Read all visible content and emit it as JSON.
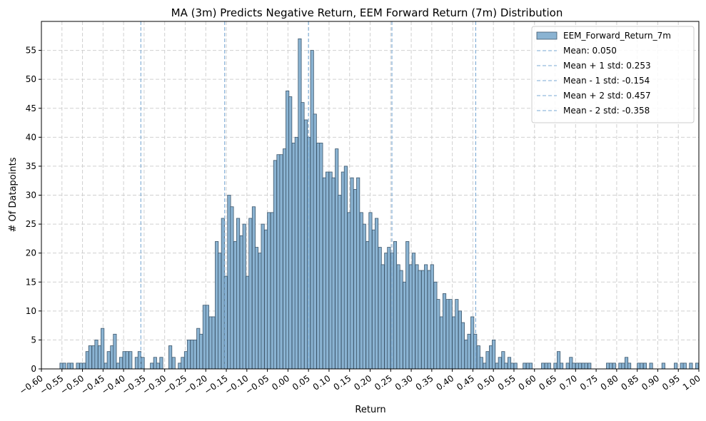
{
  "chart_data": {
    "type": "bar",
    "title": "MA (3m) Predicts Negative Return, EEM Forward Return (7m) Distribution",
    "xlabel": "Return",
    "ylabel": "# Of Datapoints",
    "xlim": [
      -0.6,
      1.0
    ],
    "ylim": [
      0,
      60
    ],
    "bin_width": 0.0075,
    "x_ticks": [
      -0.6,
      -0.55,
      -0.5,
      -0.45,
      -0.4,
      -0.35,
      -0.3,
      -0.25,
      -0.2,
      -0.15,
      -0.1,
      -0.05,
      0.0,
      0.05,
      0.1,
      0.15,
      0.2,
      0.25,
      0.3,
      0.35,
      0.4,
      0.45,
      0.5,
      0.55,
      0.6,
      0.65,
      0.7,
      0.75,
      0.8,
      0.85,
      0.9,
      0.95,
      1.0
    ],
    "x_tick_labels": [
      "−0.60",
      "−0.55",
      "−0.50",
      "−0.45",
      "−0.40",
      "−0.35",
      "−0.30",
      "−0.25",
      "−0.20",
      "−0.15",
      "−0.10",
      "−0.05",
      "0.00",
      "0.05",
      "0.10",
      "0.15",
      "0.20",
      "0.25",
      "0.30",
      "0.35",
      "0.40",
      "0.45",
      "0.50",
      "0.55",
      "0.60",
      "0.65",
      "0.70",
      "0.75",
      "0.80",
      "0.85",
      "0.90",
      "0.95",
      "1.00"
    ],
    "y_ticks": [
      0,
      5,
      10,
      15,
      20,
      25,
      30,
      35,
      40,
      45,
      50,
      55
    ],
    "y_tick_labels": [
      "0",
      "5",
      "10",
      "15",
      "20",
      "25",
      "30",
      "35",
      "40",
      "45",
      "50",
      "55"
    ],
    "grid": true,
    "legend_position": "top-right",
    "series": [
      {
        "name": "EEM_Forward_Return_7m",
        "bar_color": "#8ab3d2",
        "edge_color": "#3d566b",
        "bins": [
          [
            -0.537,
            1
          ],
          [
            -0.53,
            1
          ],
          [
            -0.522,
            0
          ],
          [
            -0.515,
            1
          ],
          [
            -0.507,
            1
          ],
          [
            -0.5,
            1
          ],
          [
            -0.492,
            3
          ],
          [
            -0.485,
            4
          ],
          [
            -0.477,
            4
          ],
          [
            -0.47,
            5
          ],
          [
            -0.462,
            4
          ],
          [
            -0.455,
            7
          ],
          [
            -0.447,
            1
          ],
          [
            -0.44,
            3
          ],
          [
            -0.432,
            4
          ],
          [
            -0.425,
            6
          ],
          [
            -0.417,
            1
          ],
          [
            -0.41,
            2
          ],
          [
            -0.402,
            3
          ],
          [
            -0.395,
            3
          ],
          [
            -0.387,
            3
          ],
          [
            -0.38,
            0
          ],
          [
            -0.372,
            2
          ],
          [
            -0.365,
            3
          ],
          [
            -0.357,
            2
          ],
          [
            -0.35,
            0
          ],
          [
            -0.342,
            0
          ],
          [
            -0.335,
            1
          ],
          [
            -0.327,
            2
          ],
          [
            -0.32,
            1
          ],
          [
            -0.312,
            2
          ],
          [
            -0.305,
            0
          ],
          [
            -0.297,
            0
          ],
          [
            -0.29,
            4
          ],
          [
            -0.282,
            2
          ],
          [
            -0.275,
            0
          ],
          [
            -0.267,
            1
          ],
          [
            -0.26,
            2
          ],
          [
            -0.252,
            3
          ],
          [
            -0.245,
            5
          ],
          [
            -0.237,
            5
          ],
          [
            -0.23,
            5
          ],
          [
            -0.222,
            7
          ],
          [
            -0.215,
            6
          ],
          [
            -0.207,
            11
          ],
          [
            -0.2,
            11
          ],
          [
            -0.192,
            9
          ],
          [
            -0.185,
            9
          ],
          [
            -0.177,
            22
          ],
          [
            -0.17,
            20
          ],
          [
            -0.162,
            26
          ],
          [
            -0.155,
            16
          ],
          [
            -0.147,
            30
          ],
          [
            -0.14,
            28
          ],
          [
            -0.132,
            22
          ],
          [
            -0.125,
            26
          ],
          [
            -0.117,
            23
          ],
          [
            -0.11,
            25
          ],
          [
            -0.102,
            16
          ],
          [
            -0.095,
            26
          ],
          [
            -0.087,
            28
          ],
          [
            -0.08,
            21
          ],
          [
            -0.072,
            20
          ],
          [
            -0.065,
            25
          ],
          [
            -0.057,
            24
          ],
          [
            -0.05,
            27
          ],
          [
            -0.042,
            27
          ],
          [
            -0.035,
            36
          ],
          [
            -0.027,
            37
          ],
          [
            -0.02,
            37
          ],
          [
            -0.012,
            38
          ],
          [
            -0.005,
            48
          ],
          [
            0.002,
            47
          ],
          [
            0.01,
            39
          ],
          [
            0.017,
            40
          ],
          [
            0.025,
            57
          ],
          [
            0.032,
            46
          ],
          [
            0.04,
            43
          ],
          [
            0.047,
            40
          ],
          [
            0.055,
            55
          ],
          [
            0.062,
            44
          ],
          [
            0.07,
            39
          ],
          [
            0.077,
            39
          ],
          [
            0.085,
            33
          ],
          [
            0.092,
            34
          ],
          [
            0.1,
            34
          ],
          [
            0.107,
            33
          ],
          [
            0.115,
            38
          ],
          [
            0.122,
            30
          ],
          [
            0.13,
            34
          ],
          [
            0.137,
            35
          ],
          [
            0.145,
            27
          ],
          [
            0.152,
            33
          ],
          [
            0.16,
            31
          ],
          [
            0.167,
            33
          ],
          [
            0.175,
            27
          ],
          [
            0.182,
            25
          ],
          [
            0.19,
            22
          ],
          [
            0.197,
            27
          ],
          [
            0.205,
            24
          ],
          [
            0.212,
            26
          ],
          [
            0.22,
            21
          ],
          [
            0.227,
            18
          ],
          [
            0.235,
            20
          ],
          [
            0.242,
            21
          ],
          [
            0.25,
            20
          ],
          [
            0.257,
            22
          ],
          [
            0.265,
            18
          ],
          [
            0.272,
            17
          ],
          [
            0.28,
            15
          ],
          [
            0.287,
            22
          ],
          [
            0.295,
            18
          ],
          [
            0.302,
            20
          ],
          [
            0.31,
            18
          ],
          [
            0.317,
            17
          ],
          [
            0.325,
            17
          ],
          [
            0.332,
            18
          ],
          [
            0.34,
            17
          ],
          [
            0.347,
            18
          ],
          [
            0.355,
            15
          ],
          [
            0.362,
            12
          ],
          [
            0.37,
            9
          ],
          [
            0.377,
            13
          ],
          [
            0.385,
            12
          ],
          [
            0.392,
            12
          ],
          [
            0.4,
            9
          ],
          [
            0.407,
            12
          ],
          [
            0.415,
            10
          ],
          [
            0.422,
            8
          ],
          [
            0.43,
            5
          ],
          [
            0.437,
            6
          ],
          [
            0.445,
            9
          ],
          [
            0.452,
            6
          ],
          [
            0.46,
            4
          ],
          [
            0.467,
            2
          ],
          [
            0.475,
            1
          ],
          [
            0.482,
            3
          ],
          [
            0.49,
            4
          ],
          [
            0.497,
            5
          ],
          [
            0.505,
            1
          ],
          [
            0.512,
            2
          ],
          [
            0.52,
            3
          ],
          [
            0.527,
            1
          ],
          [
            0.535,
            2
          ],
          [
            0.542,
            1
          ],
          [
            0.55,
            1
          ],
          [
            0.557,
            0
          ],
          [
            0.565,
            0
          ],
          [
            0.572,
            1
          ],
          [
            0.58,
            1
          ],
          [
            0.587,
            1
          ],
          [
            0.595,
            0
          ],
          [
            0.602,
            0
          ],
          [
            0.61,
            0
          ],
          [
            0.617,
            1
          ],
          [
            0.625,
            1
          ],
          [
            0.632,
            1
          ],
          [
            0.64,
            0
          ],
          [
            0.647,
            1
          ],
          [
            0.655,
            3
          ],
          [
            0.662,
            1
          ],
          [
            0.67,
            0
          ],
          [
            0.677,
            1
          ],
          [
            0.685,
            2
          ],
          [
            0.692,
            1
          ],
          [
            0.7,
            1
          ],
          [
            0.707,
            1
          ],
          [
            0.715,
            1
          ],
          [
            0.722,
            1
          ],
          [
            0.73,
            1
          ],
          [
            0.737,
            0
          ],
          [
            0.745,
            0
          ],
          [
            0.752,
            0
          ],
          [
            0.76,
            0
          ],
          [
            0.767,
            0
          ],
          [
            0.775,
            1
          ],
          [
            0.782,
            1
          ],
          [
            0.79,
            1
          ],
          [
            0.797,
            0
          ],
          [
            0.805,
            1
          ],
          [
            0.812,
            1
          ],
          [
            0.82,
            2
          ],
          [
            0.827,
            1
          ],
          [
            0.835,
            0
          ],
          [
            0.842,
            0
          ],
          [
            0.85,
            1
          ],
          [
            0.857,
            1
          ],
          [
            0.865,
            1
          ],
          [
            0.872,
            0
          ],
          [
            0.88,
            1
          ],
          [
            0.887,
            0
          ],
          [
            0.895,
            0
          ],
          [
            0.902,
            0
          ],
          [
            0.91,
            1
          ],
          [
            0.917,
            0
          ],
          [
            0.925,
            0
          ],
          [
            0.932,
            0
          ],
          [
            0.94,
            1
          ],
          [
            0.947,
            0
          ],
          [
            0.955,
            1
          ],
          [
            0.962,
            1
          ],
          [
            0.97,
            0
          ],
          [
            0.977,
            1
          ],
          [
            0.985,
            0
          ],
          [
            0.992,
            1
          ],
          [
            1.0,
            0
          ],
          [
            -0.57,
            0
          ],
          [
            -0.562,
            0
          ],
          [
            -0.555,
            1
          ],
          [
            -0.548,
            1
          ]
        ]
      }
    ],
    "reference_lines": [
      {
        "name": "Mean: 0.050",
        "x": 0.05
      },
      {
        "name": "Mean + 1 std: 0.253",
        "x": 0.253
      },
      {
        "name": "Mean - 1 std: -0.154",
        "x": -0.154
      },
      {
        "name": "Mean + 2 std: 0.457",
        "x": 0.457
      },
      {
        "name": "Mean - 2 std: -0.358",
        "x": -0.358
      }
    ],
    "reference_line_color": "#7aa9d4"
  }
}
